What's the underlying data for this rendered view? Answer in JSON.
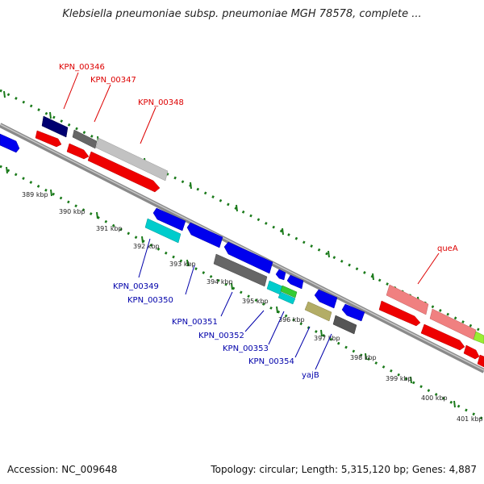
{
  "title": "Klebsiella pneumoniae subsp. pneumoniae MGH 78578, complete ...",
  "footer": {
    "accession": "Accession: NC_009648",
    "summary": "Topology: circular; Length: 5,315,120 bp; Genes: 4,887"
  },
  "colors": {
    "forward_label": "#dd0000",
    "reverse_label": "#0000aa",
    "tick": "#1a7a1a",
    "backbone": "#888888"
  },
  "ticks": [
    {
      "id": "389",
      "label": "389 kbp"
    },
    {
      "id": "390",
      "label": "390 kbp"
    },
    {
      "id": "391",
      "label": "391 kbp"
    },
    {
      "id": "392",
      "label": "392 kbp"
    },
    {
      "id": "393",
      "label": "393 kbp"
    },
    {
      "id": "394",
      "label": "394 kbp"
    },
    {
      "id": "395",
      "label": "395 kbp"
    },
    {
      "id": "396",
      "label": "396 kbp"
    },
    {
      "id": "397",
      "label": "397 kbp"
    },
    {
      "id": "398",
      "label": "398 kbp"
    },
    {
      "id": "399",
      "label": "399 kbp"
    },
    {
      "id": "400",
      "label": "400 kbp"
    },
    {
      "id": "401",
      "label": "401 kbp"
    }
  ],
  "gene_labels": {
    "kpn00346": "KPN_00346",
    "kpn00347": "KPN_00347",
    "kpn00348": "KPN_00348",
    "quea": "queA",
    "kpn00349": "KPN_00349",
    "kpn00350": "KPN_00350",
    "kpn00351": "KPN_00351",
    "kpn00352": "KPN_00352",
    "kpn00353": "KPN_00353",
    "kpn00354": "KPN_00354",
    "yajb": "yajB"
  }
}
